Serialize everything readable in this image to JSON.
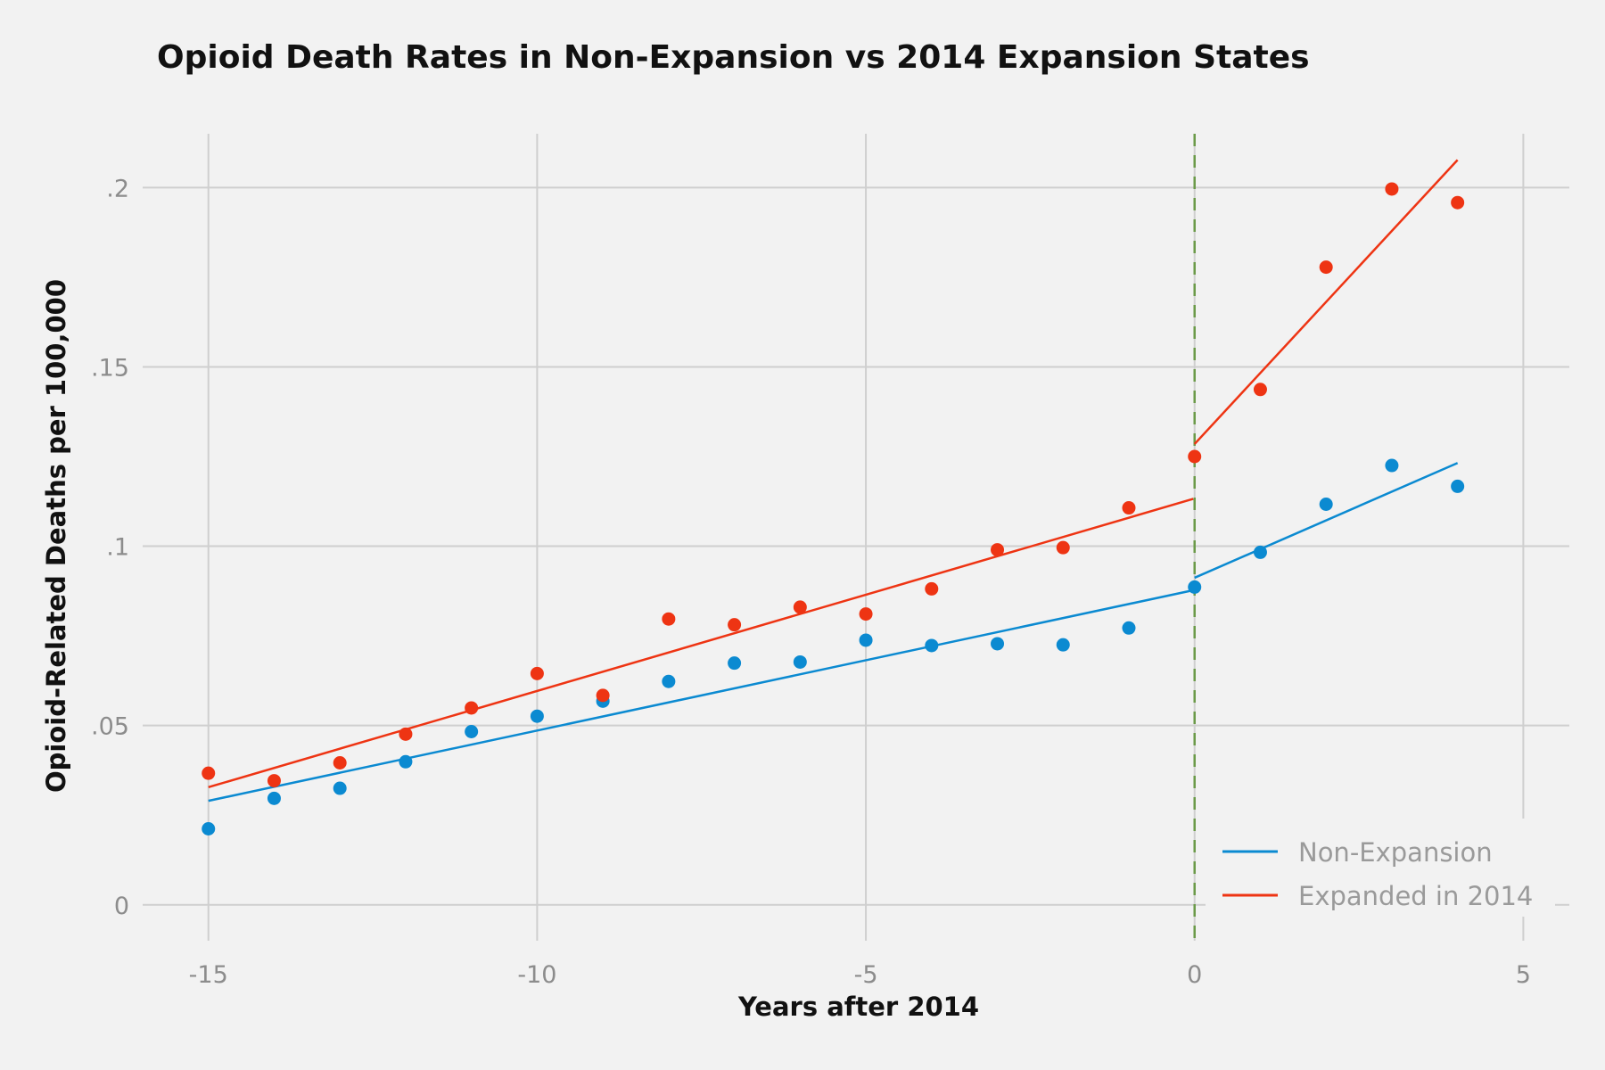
{
  "chart_data": {
    "type": "scatter",
    "title": "Opioid Death Rates in Non-Expansion vs 2014 Expansion States",
    "xlabel": "Years after 2014",
    "ylabel": "Opioid-Related Deaths per 100,000",
    "xlim": [
      -16,
      5.7
    ],
    "ylim": [
      -0.01,
      0.215
    ],
    "x_ticks": [
      -15,
      -10,
      -5,
      0,
      5
    ],
    "x_tick_labels": [
      "-15",
      "-10",
      "-5",
      "0",
      "5"
    ],
    "y_ticks": [
      0,
      0.05,
      0.1,
      0.15,
      0.2
    ],
    "y_tick_labels": [
      "0",
      ".05",
      ".1",
      ".15",
      ".2"
    ],
    "grid": true,
    "legend_position": "bottom-right",
    "vertical_reference_line": {
      "x": 0,
      "style": "dashed",
      "color": "#6b9a48"
    },
    "series": [
      {
        "name": "Non-Expansion",
        "color": "#0b8ad1",
        "points": {
          "x": [
            -15,
            -14,
            -13,
            -12,
            -11,
            -10,
            -9,
            -8,
            -7,
            -6,
            -5,
            -4,
            -3,
            -2,
            -1,
            0,
            1,
            2,
            3,
            4
          ],
          "y": [
            0.0212,
            0.0297,
            0.0325,
            0.0399,
            0.0483,
            0.0526,
            0.0568,
            0.0623,
            0.0674,
            0.0677,
            0.0738,
            0.0723,
            0.0728,
            0.0725,
            0.0772,
            0.0886,
            0.0983,
            0.1117,
            0.1225,
            0.1167
          ]
        },
        "fit_segments": [
          {
            "x": [
              -15,
              0
            ],
            "y": [
              0.029,
              0.0878
            ]
          },
          {
            "x": [
              0,
              4
            ],
            "y": [
              0.0912,
              0.1232
            ]
          }
        ]
      },
      {
        "name": "Expanded in 2014",
        "color": "#ee3413",
        "points": {
          "x": [
            -15,
            -14,
            -13,
            -12,
            -11,
            -10,
            -9,
            -8,
            -7,
            -6,
            -5,
            -4,
            -3,
            -2,
            -1,
            0,
            1,
            2,
            3,
            4
          ],
          "y": [
            0.0367,
            0.0346,
            0.0396,
            0.0476,
            0.0549,
            0.0645,
            0.0584,
            0.0797,
            0.0781,
            0.083,
            0.0811,
            0.0881,
            0.099,
            0.0996,
            0.1107,
            0.125,
            0.1437,
            0.1778,
            0.1996,
            0.1958
          ]
        },
        "fit_segments": [
          {
            "x": [
              -15,
              -0.02
            ],
            "y": [
              0.0328,
              0.1132
            ]
          },
          {
            "x": [
              0,
              4
            ],
            "y": [
              0.1285,
              0.2077
            ]
          }
        ]
      }
    ]
  }
}
